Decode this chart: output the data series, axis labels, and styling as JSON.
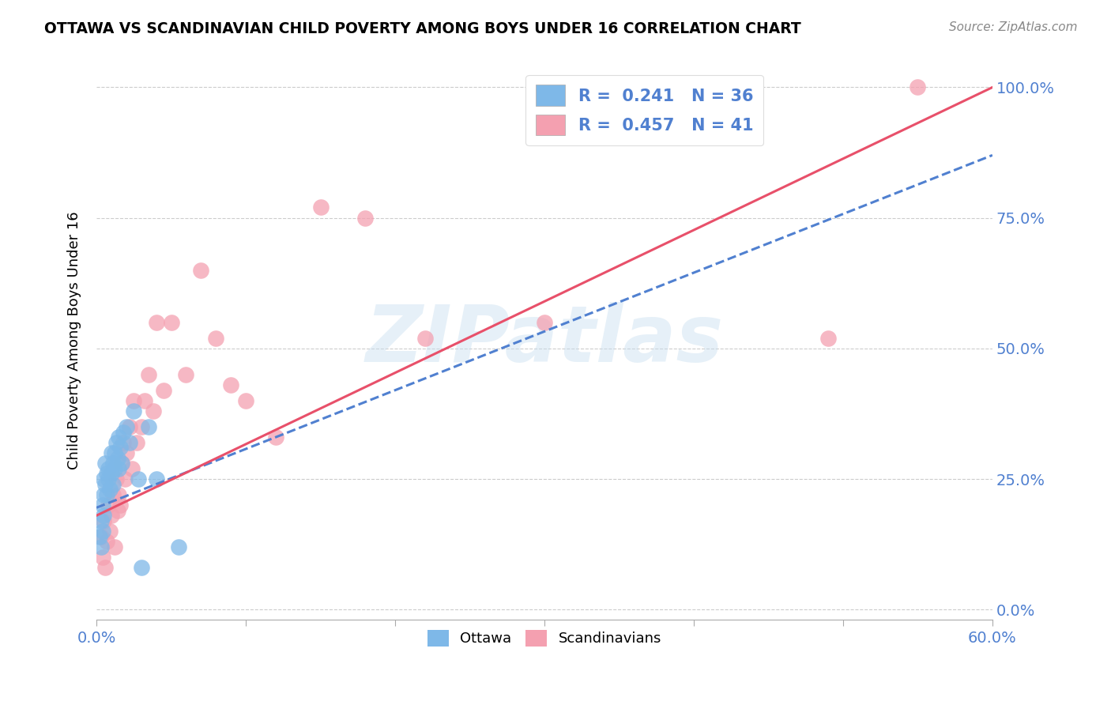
{
  "title": "OTTAWA VS SCANDINAVIAN CHILD POVERTY AMONG BOYS UNDER 16 CORRELATION CHART",
  "source": "Source: ZipAtlas.com",
  "ylabel": "Child Poverty Among Boys Under 16",
  "xlim": [
    0.0,
    0.6
  ],
  "ylim": [
    -0.02,
    1.05
  ],
  "x_tick_vals": [
    0.0,
    0.1,
    0.2,
    0.3,
    0.4,
    0.5,
    0.6
  ],
  "x_tick_labels_show": [
    "0.0%",
    "",
    "",
    "",
    "",
    "",
    "60.0%"
  ],
  "y_tick_vals": [
    0.0,
    0.25,
    0.5,
    0.75,
    1.0
  ],
  "y_tick_labels": [
    "0.0%",
    "25.0%",
    "50.0%",
    "75.0%",
    "100.0%"
  ],
  "ottawa_R": 0.241,
  "ottawa_N": 36,
  "scand_R": 0.457,
  "scand_N": 41,
  "ottawa_color": "#7eb8e8",
  "scand_color": "#f4a0b0",
  "ottawa_line_color": "#5080d0",
  "scand_line_color": "#e8506a",
  "watermark_color": "#c8dff0",
  "watermark_text": "ZIPatlas",
  "tick_color": "#5080d0",
  "grid_color": "#cccccc",
  "ottawa_points_x": [
    0.002,
    0.003,
    0.003,
    0.004,
    0.004,
    0.005,
    0.005,
    0.005,
    0.006,
    0.006,
    0.007,
    0.007,
    0.008,
    0.008,
    0.009,
    0.01,
    0.01,
    0.011,
    0.011,
    0.012,
    0.012,
    0.013,
    0.014,
    0.015,
    0.015,
    0.016,
    0.017,
    0.018,
    0.02,
    0.022,
    0.025,
    0.028,
    0.03,
    0.035,
    0.04,
    0.055
  ],
  "ottawa_points_y": [
    0.14,
    0.17,
    0.12,
    0.2,
    0.15,
    0.22,
    0.25,
    0.18,
    0.28,
    0.24,
    0.26,
    0.22,
    0.25,
    0.27,
    0.23,
    0.3,
    0.26,
    0.28,
    0.24,
    0.3,
    0.27,
    0.32,
    0.29,
    0.33,
    0.27,
    0.31,
    0.28,
    0.34,
    0.35,
    0.32,
    0.38,
    0.25,
    0.08,
    0.35,
    0.25,
    0.12
  ],
  "scand_points_x": [
    0.003,
    0.004,
    0.005,
    0.006,
    0.007,
    0.008,
    0.009,
    0.01,
    0.011,
    0.012,
    0.013,
    0.014,
    0.015,
    0.016,
    0.017,
    0.018,
    0.019,
    0.02,
    0.022,
    0.024,
    0.025,
    0.027,
    0.03,
    0.032,
    0.035,
    0.038,
    0.04,
    0.045,
    0.05,
    0.06,
    0.07,
    0.08,
    0.09,
    0.1,
    0.12,
    0.15,
    0.18,
    0.22,
    0.3,
    0.49,
    0.55
  ],
  "scand_points_y": [
    0.14,
    0.1,
    0.17,
    0.08,
    0.13,
    0.2,
    0.15,
    0.18,
    0.22,
    0.12,
    0.25,
    0.19,
    0.22,
    0.2,
    0.28,
    0.32,
    0.25,
    0.3,
    0.35,
    0.27,
    0.4,
    0.32,
    0.35,
    0.4,
    0.45,
    0.38,
    0.55,
    0.42,
    0.55,
    0.45,
    0.65,
    0.52,
    0.43,
    0.4,
    0.33,
    0.77,
    0.75,
    0.52,
    0.55,
    0.52,
    1.0
  ],
  "ottawa_line_x0": 0.0,
  "ottawa_line_x1": 0.6,
  "ottawa_line_y0": 0.195,
  "ottawa_line_y1": 0.87,
  "scand_line_x0": 0.0,
  "scand_line_x1": 0.6,
  "scand_line_y0": 0.18,
  "scand_line_y1": 1.0
}
